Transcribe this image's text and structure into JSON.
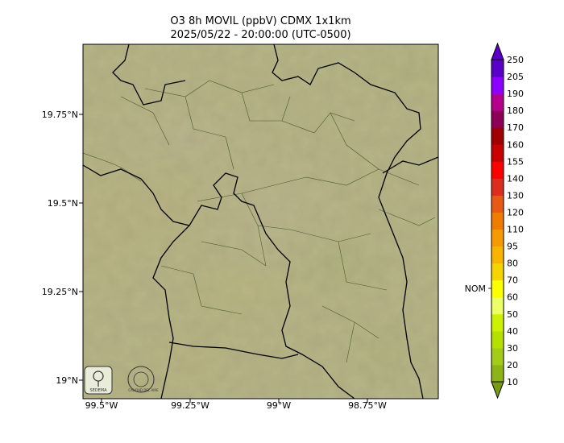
{
  "title": {
    "line1": "O3 8h MOVIL (ppbV) CDMX 1x1km",
    "line2": "2025/05/22 - 20:00:00 (UTC-0500)"
  },
  "axes": {
    "x_ticks": [
      "99.5°W",
      "99.25°W",
      "99°W",
      "98.75°W"
    ],
    "y_ticks": [
      "19.75°N",
      "19.5°N",
      "19.25°N",
      "19°N"
    ]
  },
  "colorbar": {
    "levels": [
      10,
      20,
      30,
      40,
      50,
      60,
      70,
      80,
      95,
      110,
      120,
      130,
      140,
      155,
      160,
      170,
      180,
      190,
      205,
      250
    ],
    "labels": [
      "10",
      "20",
      "30",
      "40",
      "50",
      "60",
      "70",
      "80",
      "95",
      "110",
      "120",
      "130",
      "140",
      "155",
      "160",
      "170",
      "180",
      "190",
      "205",
      "250"
    ],
    "colors": [
      "#7a9a10",
      "#8db414",
      "#a2cc16",
      "#b6e000",
      "#ccf200",
      "#ecff66",
      "#fbff00",
      "#f5d400",
      "#f7b500",
      "#f59a00",
      "#f07c00",
      "#e85a14",
      "#dd2d1e",
      "#ff0000",
      "#c80000",
      "#a00000",
      "#8c0058",
      "#b4008c",
      "#8c00ff",
      "#5a00c8"
    ],
    "nom_label": "NOM",
    "nom_value": 60
  },
  "logos": {
    "left": "SEDEMA",
    "right": "CALIDAD DEL AIRE"
  },
  "map_colors": {
    "background": "#b4d25a",
    "low": "#a6c850",
    "mid": "#d2dc6e",
    "high": "#dcd21e",
    "urban": "#c8c08a",
    "border": "#000000"
  }
}
